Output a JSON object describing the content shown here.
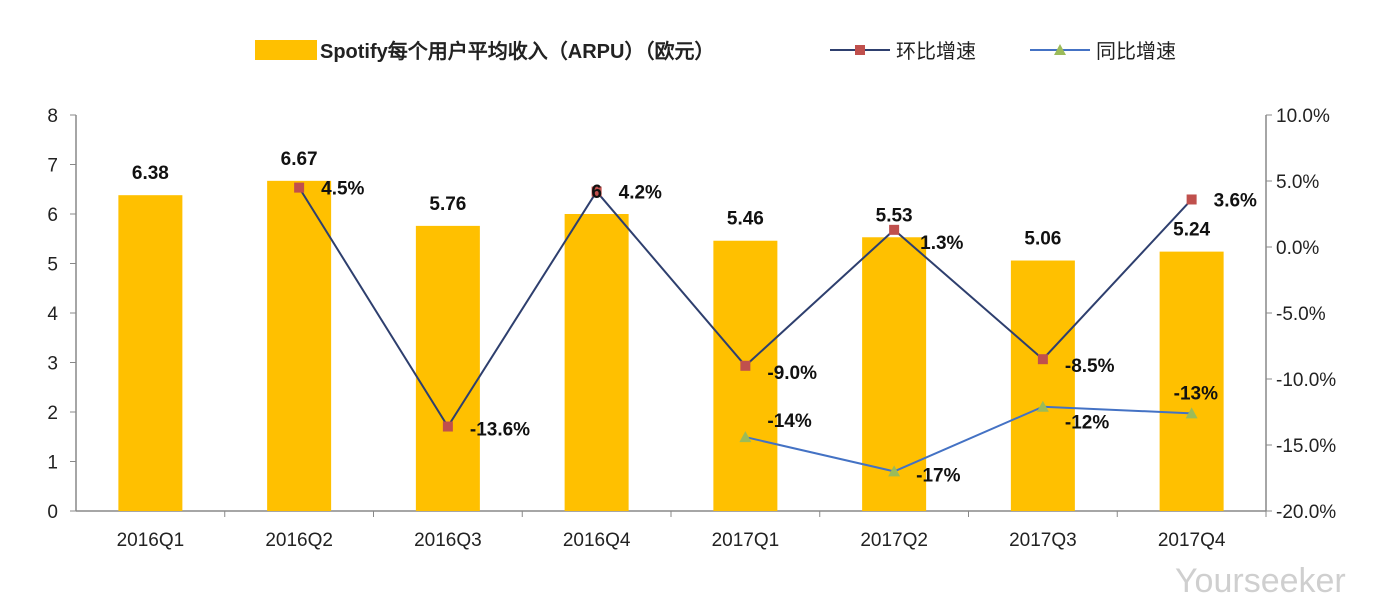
{
  "chart_data": {
    "type": "bar+line",
    "categories": [
      "2016Q1",
      "2016Q2",
      "2016Q3",
      "2016Q4",
      "2017Q1",
      "2017Q2",
      "2017Q3",
      "2017Q4"
    ],
    "series": [
      {
        "name": "Spotify每个用户平均收入（ARPU）（欧元）",
        "type": "bar",
        "axis": "left",
        "color": "#FFC000",
        "values": [
          6.38,
          6.67,
          5.76,
          6,
          5.46,
          5.53,
          5.06,
          5.24
        ],
        "labels": [
          "6.38",
          "6.67",
          "5.76",
          "6",
          "5.46",
          "5.53",
          "5.06",
          "5.24"
        ]
      },
      {
        "name": "环比增速",
        "type": "line",
        "axis": "right",
        "color": "#2E3F6E",
        "marker_color": "#C0504D",
        "marker": "square",
        "values": [
          null,
          4.5,
          -13.6,
          4.2,
          -9.0,
          1.3,
          -8.5,
          3.6
        ],
        "labels": [
          null,
          "4.5%",
          "-13.6%",
          "4.2%",
          "-9.0%",
          "1.3%",
          "-8.5%",
          "3.6%"
        ]
      },
      {
        "name": "同比增速",
        "type": "line",
        "axis": "right",
        "color": "#4472C4",
        "marker_color": "#9BBB59",
        "marker": "triangle",
        "values": [
          null,
          null,
          null,
          null,
          -14.4,
          -17.0,
          -12.1,
          -12.6
        ],
        "labels": [
          null,
          null,
          null,
          null,
          "-14%",
          "-17%",
          "-12%",
          "-13%"
        ]
      }
    ],
    "left_axis": {
      "ylim": [
        0,
        8
      ],
      "ticks": [
        "0",
        "1",
        "2",
        "3",
        "4",
        "5",
        "6",
        "7",
        "8"
      ]
    },
    "right_axis": {
      "ylim": [
        -20,
        10
      ],
      "ticks": [
        "-20.0%",
        "-15.0%",
        "-10.0%",
        "-5.0%",
        "0.0%",
        "5.0%",
        "10.0%"
      ]
    },
    "legend": "top",
    "grid": false
  },
  "watermark": "Yourseeker"
}
